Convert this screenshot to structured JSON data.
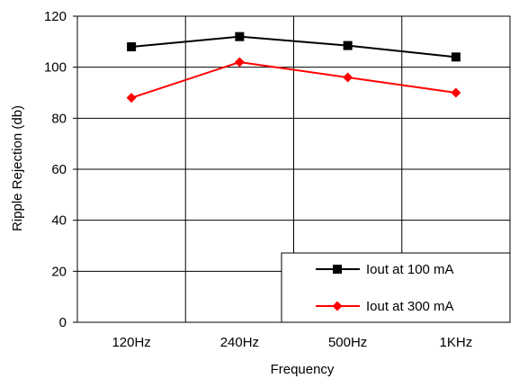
{
  "chart_data": {
    "type": "line",
    "categories": [
      "120Hz",
      "240Hz",
      "500Hz",
      "1KHz"
    ],
    "series": [
      {
        "name": "Iout at 100 mA",
        "values": [
          108,
          112,
          108.5,
          104
        ],
        "color": "#000000",
        "marker": "square"
      },
      {
        "name": "Iout at 300 mA",
        "values": [
          88,
          102,
          96,
          90
        ],
        "color": "#ff0000",
        "marker": "diamond"
      }
    ],
    "xlabel": "Frequency",
    "ylabel": "Ripple Rejection (db)",
    "ylim": [
      0,
      120
    ],
    "yticks": [
      0,
      20,
      40,
      60,
      80,
      100,
      120
    ],
    "grid": true,
    "legend_position": "bottom-right"
  }
}
